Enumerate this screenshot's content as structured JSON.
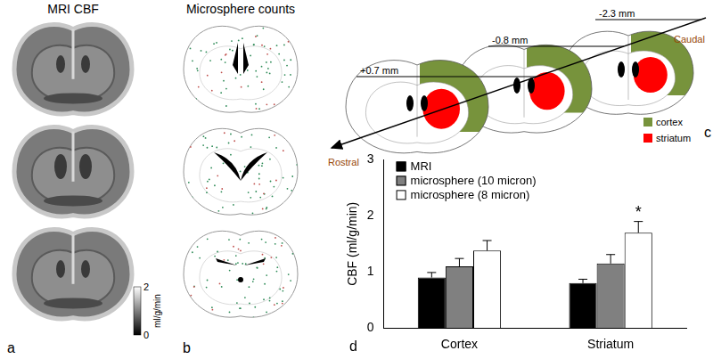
{
  "panel_a": {
    "label": "a",
    "title": "MRI CBF",
    "colorbar": {
      "range": [
        0,
        2
      ],
      "ticks": [
        0,
        2
      ],
      "label": "ml/g/min"
    }
  },
  "panel_b": {
    "label": "b",
    "title": "Microsphere counts"
  },
  "panel_c": {
    "label": "c",
    "direction": {
      "start": "Rostral",
      "end": "Caudal"
    },
    "slices": [
      "+0.7 mm",
      "-0.8 mm",
      "-2.3 mm"
    ],
    "regions": [
      {
        "name": "cortex",
        "color": "#77933c"
      },
      {
        "name": "striatum",
        "color": "#ff0000"
      }
    ]
  },
  "panel_d": {
    "label": "d"
  },
  "chart_data": {
    "type": "bar",
    "categories": [
      "Cortex",
      "Striatum"
    ],
    "y_label": "CBF (ml/g/min)",
    "ylim": [
      0,
      3
    ],
    "yticks": [
      0,
      1,
      2,
      3
    ],
    "grid": false,
    "legend": "upper left",
    "series": [
      {
        "name": "MRI",
        "color": "#000000",
        "values": [
          0.9,
          0.8
        ],
        "errors": [
          0.09,
          0.07
        ]
      },
      {
        "name": "microsphere (10 micron)",
        "color": "#808080",
        "values": [
          1.1,
          1.15
        ],
        "errors": [
          0.14,
          0.16
        ]
      },
      {
        "name": "microsphere (8 micron)",
        "color": "#ffffff",
        "values": [
          1.38,
          1.7
        ],
        "errors": [
          0.18,
          0.2
        ]
      }
    ],
    "annotations": [
      {
        "text": "*",
        "category": "Striatum",
        "series": "microsphere (8 micron)"
      }
    ]
  }
}
